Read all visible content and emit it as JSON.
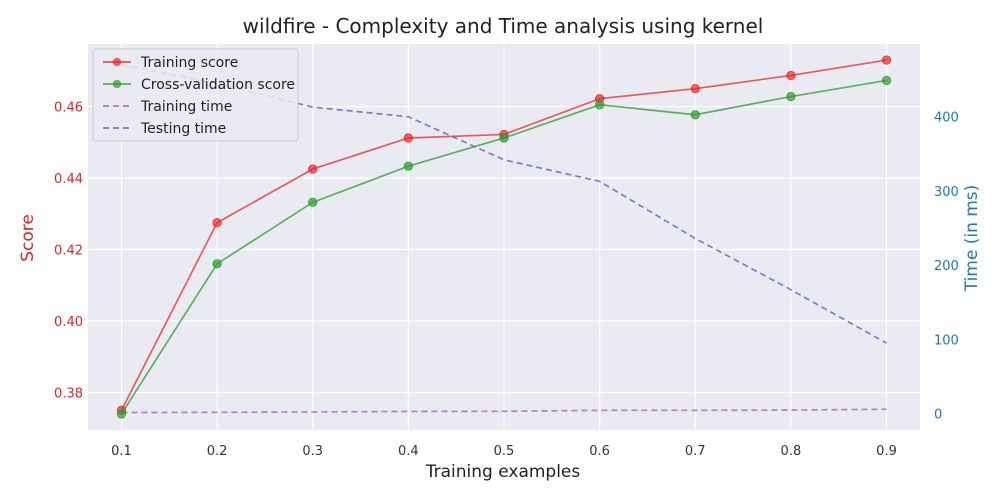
{
  "chart_data": {
    "type": "line",
    "title": "wildfire - Complexity and Time analysis using  kernel",
    "xlabel": "Training examples",
    "ylabel_left": "Score",
    "ylabel_right": "Time (in ms)",
    "x": [
      0.1,
      0.2,
      0.3,
      0.4,
      0.5,
      0.6,
      0.7,
      0.8,
      0.9
    ],
    "xlim": [
      0.065,
      0.935
    ],
    "x_ticks": [
      "0.1",
      "0.2",
      "0.3",
      "0.4",
      "0.5",
      "0.6",
      "0.7",
      "0.8",
      "0.9"
    ],
    "ylim_left": [
      0.3695,
      0.4775
    ],
    "y_ticks_left": [
      "0.38",
      "0.40",
      "0.42",
      "0.44",
      "0.46"
    ],
    "ylim_right": [
      -22,
      498
    ],
    "y_ticks_right": [
      "0",
      "100",
      "200",
      "300",
      "400"
    ],
    "grid": true,
    "legend_position": "top-left",
    "series": [
      {
        "name": "Training score",
        "axis": "left",
        "style": "solid-marker",
        "color": "#e8282a",
        "values": [
          0.375,
          0.4275,
          0.4425,
          0.4512,
          0.4522,
          0.4622,
          0.465,
          0.4687,
          0.473
        ]
      },
      {
        "name": "Cross-validation score",
        "axis": "left",
        "style": "solid-marker",
        "color": "#2f9a2f",
        "values": [
          0.374,
          0.416,
          0.4332,
          0.4433,
          0.4512,
          0.4605,
          0.4577,
          0.4628,
          0.4673
        ]
      },
      {
        "name": "Training time",
        "axis": "right",
        "style": "dashed",
        "color": "#a25cb0",
        "values": [
          1.5,
          1.8,
          2.3,
          3,
          3.2,
          4.5,
          4.5,
          4.8,
          6
        ]
      },
      {
        "name": "Testing time",
        "axis": "right",
        "style": "dashed",
        "color": "#5a5ab8",
        "values": [
          470,
          445,
          413,
          400,
          342,
          313,
          236,
          167,
          95
        ]
      }
    ],
    "colors": {
      "left_axis": "#d62728",
      "right_axis": "#1f77b4",
      "plot_background": "#eaeaf2",
      "grid": "#ffffff"
    }
  }
}
